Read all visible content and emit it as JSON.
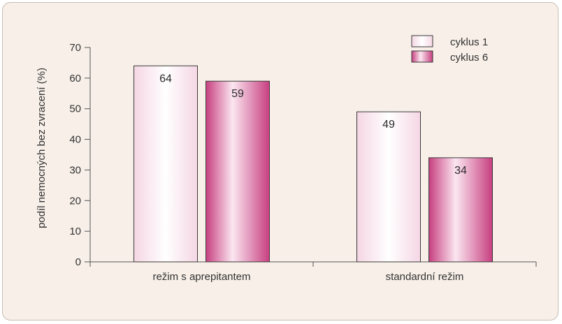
{
  "chart_data": {
    "type": "bar",
    "categories": [
      "režim s aprepitantem",
      "standardní režim"
    ],
    "series": [
      {
        "name": "cyklus 1",
        "values": [
          64,
          49
        ]
      },
      {
        "name": "cyklus 6",
        "values": [
          59,
          34
        ]
      }
    ],
    "ylabel": "podíl nemocných bez zvracení (%)",
    "xlabel": "",
    "ylim": [
      0,
      70
    ],
    "yticks": [
      0,
      10,
      20,
      30,
      40,
      50,
      60,
      70
    ],
    "grid": false,
    "legend": "top-right",
    "colors": {
      "cyklus 1": {
        "edge": "#f3cfe0",
        "center": "#ffffff"
      },
      "cyklus 6": {
        "edge": "#c3407e",
        "center": "#fbe3ee"
      }
    }
  }
}
